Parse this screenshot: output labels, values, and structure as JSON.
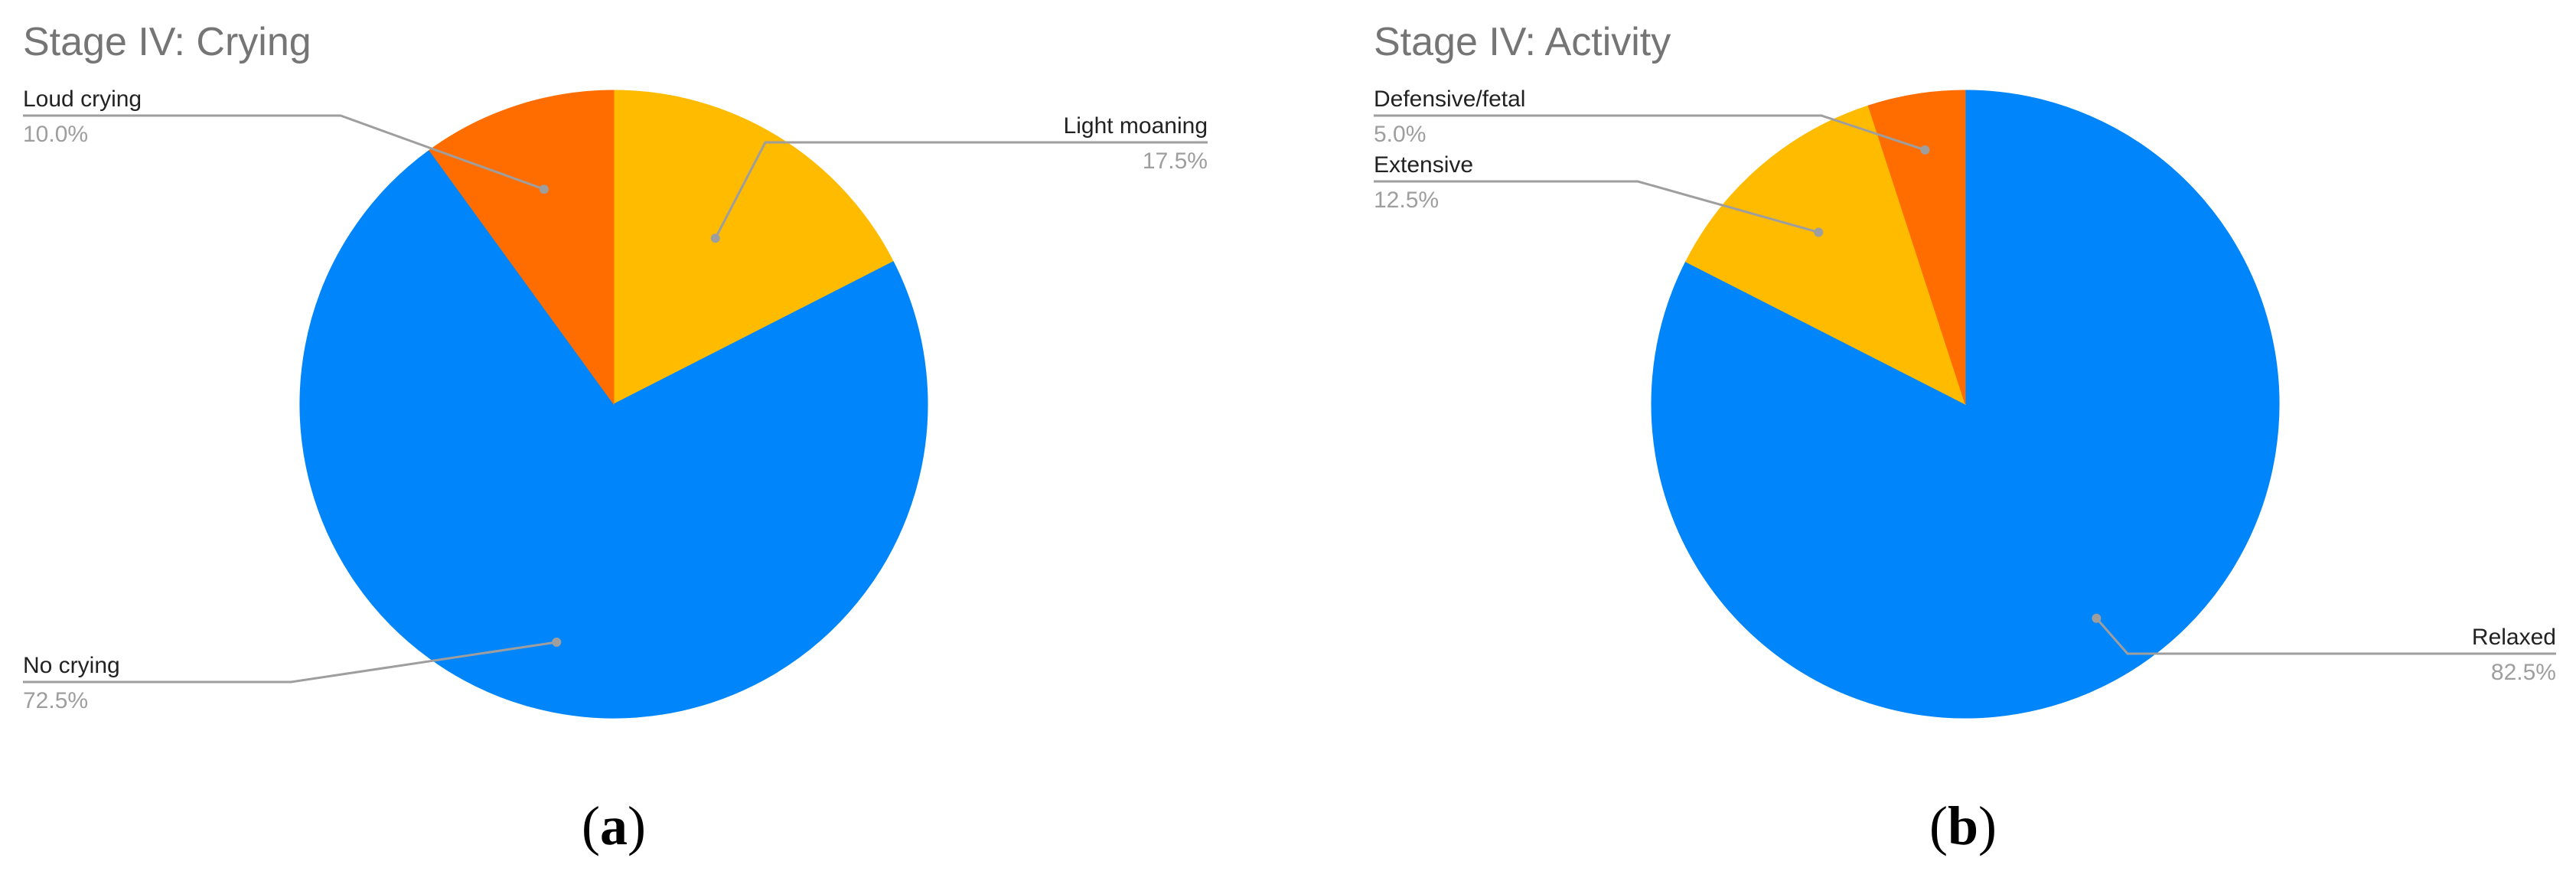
{
  "chart_data": [
    {
      "type": "pie",
      "title": "Stage IV: Crying",
      "caption": "a",
      "start_angle_deg": 0,
      "direction": "clockwise",
      "slices": [
        {
          "label": "Light moaning",
          "value": 17.5,
          "display": "17.5%",
          "color": "#FFBB00"
        },
        {
          "label": "No crying",
          "value": 72.5,
          "display": "72.5%",
          "color": "#0085FA"
        },
        {
          "label": "Loud crying",
          "value": 10.0,
          "display": "10.0%",
          "color": "#FF6D00"
        }
      ]
    },
    {
      "type": "pie",
      "title": "Stage IV: Activity",
      "caption": "b",
      "start_angle_deg": 0,
      "direction": "clockwise",
      "slices": [
        {
          "label": "Relaxed",
          "value": 82.5,
          "display": "82.5%",
          "color": "#0085FA"
        },
        {
          "label": "Extensive",
          "value": 12.5,
          "display": "12.5%",
          "color": "#FFBB00"
        },
        {
          "label": "Defensive/fetal",
          "value": 5.0,
          "display": "5.0%",
          "color": "#FF6D00"
        }
      ]
    }
  ]
}
